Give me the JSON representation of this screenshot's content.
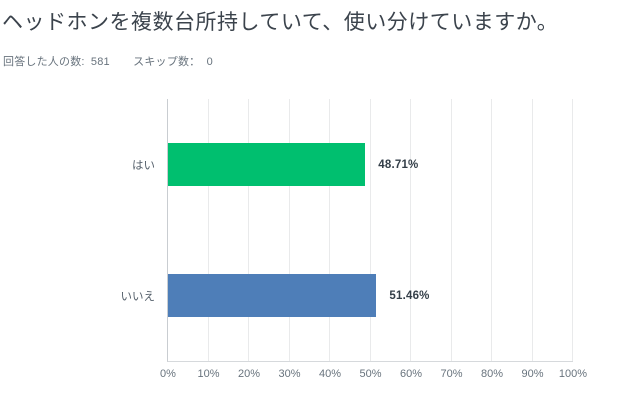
{
  "header": {
    "title": "ヘッドホンを複数台所持していて、使い分けていますか。"
  },
  "meta": {
    "answered_label": "回答した人の数:",
    "answered_count": "581",
    "skipped_label": "スキップ数：",
    "skipped_count": "0"
  },
  "colors": {
    "bar_green": "#00bf6f",
    "bar_blue": "#4e7eb8",
    "title_text": "#3b434c",
    "muted_text": "#68737d",
    "value_text": "#333e48",
    "gridline": "#e9eaeb",
    "axis_line": "#c9cdd1"
  },
  "chart_data": {
    "type": "bar",
    "orientation": "horizontal",
    "title": "",
    "xlabel": "",
    "ylabel": "",
    "categories": [
      "はい",
      "いいえ"
    ],
    "values": [
      48.71,
      51.46
    ],
    "value_labels": [
      "48.71%",
      "51.46%"
    ],
    "bar_colors": [
      "#00bf6f",
      "#4e7eb8"
    ],
    "xlim": [
      0,
      100
    ],
    "x_tick_labels": [
      "0%",
      "10%",
      "20%",
      "30%",
      "40%",
      "50%",
      "60%",
      "70%",
      "80%",
      "90%",
      "100%"
    ],
    "grid": true,
    "legend": false
  }
}
